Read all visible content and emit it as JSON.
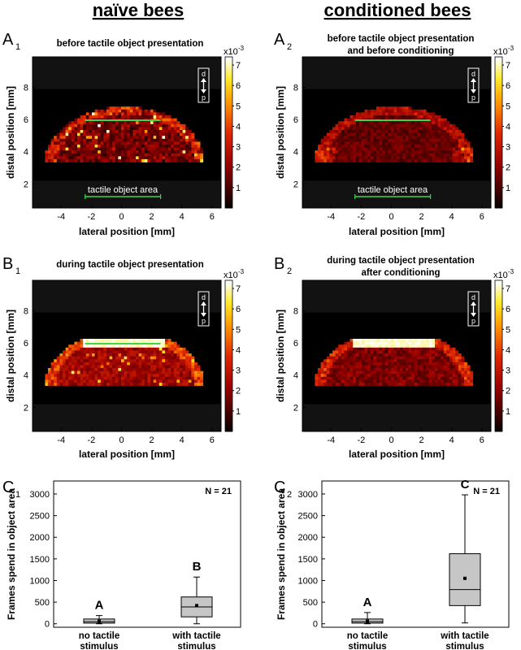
{
  "headers": {
    "left": "naïve bees",
    "right": "conditioned bees"
  },
  "panels": [
    {
      "id": "A1",
      "letter": "A",
      "sub": "1",
      "title": [
        "before tactile object presentation"
      ],
      "mode": "before",
      "show_area_label": true
    },
    {
      "id": "A2",
      "letter": "A",
      "sub": "2",
      "title": [
        "before tactile object presentation",
        "and before conditioning"
      ],
      "mode": "before_cond",
      "show_area_label": true
    },
    {
      "id": "B1",
      "letter": "B",
      "sub": "1",
      "title": [
        "during tactile object presentation"
      ],
      "mode": "during",
      "show_area_label": false
    },
    {
      "id": "B2",
      "letter": "B",
      "sub": "2",
      "title": [
        "during tactile object presentation",
        "after conditioning"
      ],
      "mode": "during_cond",
      "show_area_label": false
    }
  ],
  "heatmap_axes": {
    "xlabel": "lateral position [mm]",
    "ylabel": "distal position [mm]",
    "xlim": [
      -5.9,
      6.6
    ],
    "ylim": [
      0.5,
      9.9
    ],
    "xticks": [
      -4,
      -2,
      0,
      2,
      4,
      6
    ],
    "yticks": [
      2,
      4,
      6,
      8
    ],
    "arena_ylim": [
      2.2,
      7.9
    ],
    "object_line": {
      "x": [
        -2.4,
        2.6
      ],
      "y": 6.0
    },
    "area_bar": {
      "x": [
        -2.4,
        2.6
      ],
      "y": 0.95
    },
    "area_label": "tactile object area",
    "compass": {
      "top": "d",
      "bottom": "p"
    }
  },
  "colorbar": {
    "exponent": "x10",
    "exponent_power": "-3",
    "ticks": [
      1,
      2,
      3,
      4,
      5,
      6,
      7
    ],
    "max": 7.4
  },
  "box_panels": [
    {
      "id": "C1",
      "letter": "C",
      "sub": "1",
      "n_label": "N = 21"
    },
    {
      "id": "C2",
      "letter": "C",
      "sub": "2",
      "n_label": "N = 21"
    }
  ],
  "box_axes": {
    "ylabel": "Frames spend  in object area",
    "yticks": [
      0,
      500,
      1000,
      1500,
      2000,
      2500,
      3000
    ],
    "ylim": [
      -80,
      3300
    ],
    "categories": [
      [
        "no tactile",
        "stimulus"
      ],
      [
        "with tactile",
        "stimulus"
      ]
    ]
  },
  "chart_data": [
    {
      "type": "heatmap",
      "panel": "A1",
      "title": "before tactile object presentation",
      "xlabel": "lateral position [mm]",
      "ylabel": "distal position [mm]",
      "xlim": [
        -5.9,
        6.6
      ],
      "ylim": [
        0.5,
        9.9
      ],
      "colorbar_range": [
        0,
        0.0074
      ]
    },
    {
      "type": "heatmap",
      "panel": "A2",
      "title": "before tactile object presentation and before conditioning",
      "xlabel": "lateral position [mm]",
      "ylabel": "distal position [mm]",
      "xlim": [
        -5.9,
        6.6
      ],
      "ylim": [
        0.5,
        9.9
      ],
      "colorbar_range": [
        0,
        0.0074
      ]
    },
    {
      "type": "heatmap",
      "panel": "B1",
      "title": "during tactile object presentation",
      "xlabel": "lateral position [mm]",
      "ylabel": "distal position [mm]",
      "xlim": [
        -5.9,
        6.6
      ],
      "ylim": [
        0.5,
        9.9
      ],
      "colorbar_range": [
        0,
        0.0074
      ]
    },
    {
      "type": "heatmap",
      "panel": "B2",
      "title": "during tactile object presentation after conditioning",
      "xlabel": "lateral position [mm]",
      "ylabel": "distal position [mm]",
      "xlim": [
        -5.9,
        6.6
      ],
      "ylim": [
        0.5,
        9.9
      ],
      "colorbar_range": [
        0,
        0.0074
      ]
    },
    {
      "type": "box",
      "panel": "C1",
      "ylabel": "Frames spend  in object area",
      "ylim": [
        -80,
        3300
      ],
      "categories": [
        "no tactile stimulus",
        "with tactile stimulus"
      ],
      "series": [
        {
          "category": "no tactile stimulus",
          "whisker_low": 0,
          "q1": 15,
          "median": 50,
          "q3": 110,
          "whisker_high": 190,
          "mean": 60,
          "letter": "A"
        },
        {
          "category": "with tactile stimulus",
          "whisker_low": 0,
          "q1": 160,
          "median": 390,
          "q3": 620,
          "whisker_high": 1080,
          "mean": 420,
          "letter": "B"
        }
      ]
    },
    {
      "type": "box",
      "panel": "C2",
      "ylabel": "Frames spend  in object area",
      "ylim": [
        -80,
        3300
      ],
      "categories": [
        "no tactile stimulus",
        "with tactile stimulus"
      ],
      "series": [
        {
          "category": "no tactile stimulus",
          "whisker_low": 0,
          "q1": 15,
          "median": 50,
          "q3": 110,
          "whisker_high": 260,
          "mean": 60,
          "letter": "A"
        },
        {
          "category": "with tactile stimulus",
          "whisker_low": 20,
          "q1": 420,
          "median": 790,
          "q3": 1620,
          "whisker_high": 2980,
          "mean": 1050,
          "letter": "C"
        }
      ]
    }
  ]
}
